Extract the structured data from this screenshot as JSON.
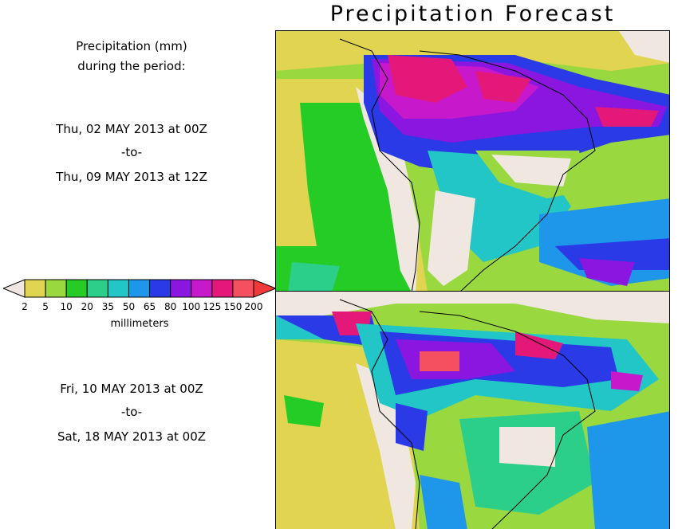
{
  "title": "Precipitation Forecast",
  "legend": {
    "heading_line1": "Precipitation (mm)",
    "heading_line2": "during the period:",
    "unit_label": "millimeters",
    "levels": [
      "2",
      "5",
      "10",
      "20",
      "35",
      "50",
      "65",
      "80",
      "100",
      "125",
      "150",
      "200"
    ],
    "colors": [
      "#e0d450",
      "#9ad840",
      "#25cc25",
      "#2ccf8a",
      "#22c6c6",
      "#1e96ea",
      "#2a3ae6",
      "#8a16e0",
      "#c818cc",
      "#e41878",
      "#f55060"
    ],
    "below_color": "#f0e8e0",
    "above_color": "#f03a3a"
  },
  "period1": {
    "start": "Thu, 02 MAY 2013 at 00Z",
    "sep": "-to-",
    "end": "Thu, 09 MAY 2013 at 12Z"
  },
  "period2": {
    "start": "Fri, 10 MAY 2013 at 00Z",
    "sep": "-to-",
    "end": "Sat, 18 MAY 2013 at 00Z"
  },
  "map_region": "South America"
}
